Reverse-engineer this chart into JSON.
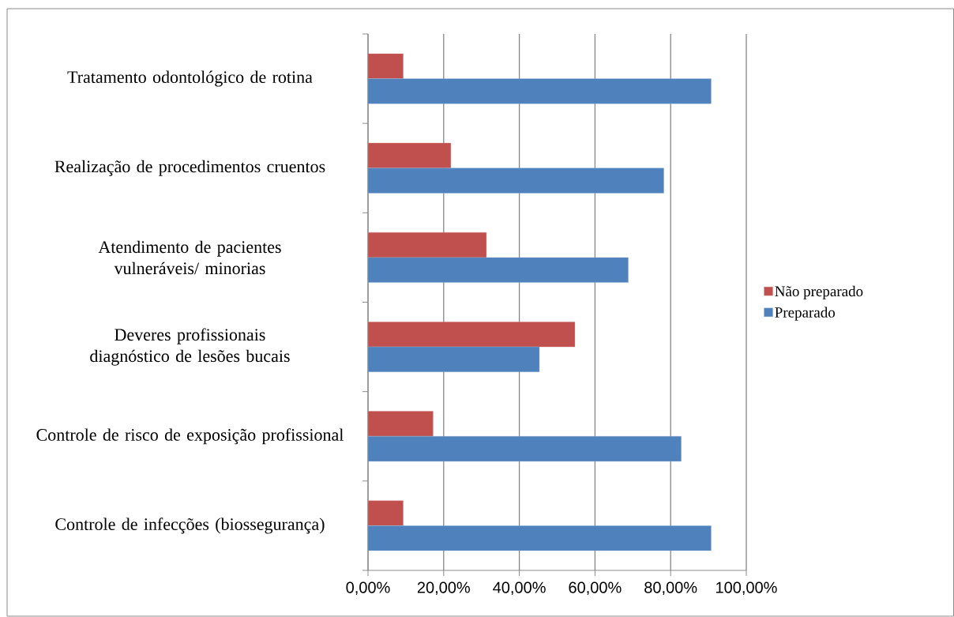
{
  "chart_data": {
    "type": "bar",
    "orientation": "horizontal",
    "categories": [
      "Tratamento odontológico de rotina",
      "Realização de procedimentos cruentos",
      "Atendimento de pacientes vulneráveis/ minorias",
      "Deveres profissionais diagnóstico de lesões bucais",
      "Controle de risco de exposição profissional",
      "Controle de infecções (biossegurança)"
    ],
    "series": [
      {
        "name": "Não preparado",
        "color": "#c0504d",
        "values": [
          9.3,
          21.9,
          31.3,
          54.7,
          17.2,
          9.3
        ]
      },
      {
        "name": "Preparado",
        "color": "#4f81bd",
        "values": [
          90.7,
          78.2,
          68.8,
          45.3,
          82.8,
          90.7
        ]
      }
    ],
    "xlim": [
      0,
      100
    ],
    "xticks": [
      {
        "value": 0,
        "label": "0,00%"
      },
      {
        "value": 20,
        "label": "20,00%"
      },
      {
        "value": 40,
        "label": "40,00%"
      },
      {
        "value": 60,
        "label": "60,00%"
      },
      {
        "value": 80,
        "label": "80,00%"
      },
      {
        "value": 100,
        "label": "100,00%"
      }
    ],
    "grid": "x",
    "legend": "right"
  }
}
